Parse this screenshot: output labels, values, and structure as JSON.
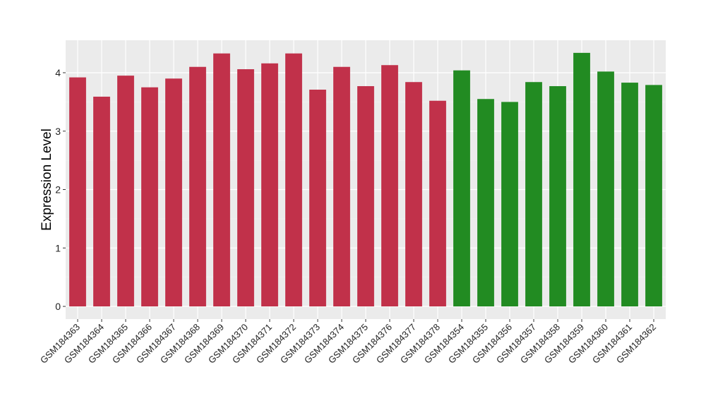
{
  "chart_data": {
    "type": "bar",
    "title": "",
    "xlabel": "",
    "ylabel": "Expression Level",
    "ylim": [
      0,
      4.4
    ],
    "yticks": [
      "0",
      "1",
      "2",
      "3",
      "4"
    ],
    "grid": true,
    "categories": [
      "GSM184363",
      "GSM184364",
      "GSM184365",
      "GSM184366",
      "GSM184367",
      "GSM184368",
      "GSM184369",
      "GSM184370",
      "GSM184371",
      "GSM184372",
      "GSM184373",
      "GSM184374",
      "GSM184375",
      "GSM184376",
      "GSM184377",
      "GSM184378",
      "GSM184354",
      "GSM184355",
      "GSM184356",
      "GSM184357",
      "GSM184358",
      "GSM184359",
      "GSM184360",
      "GSM184361",
      "GSM184362"
    ],
    "values": [
      3.92,
      3.59,
      3.95,
      3.75,
      3.9,
      4.1,
      4.33,
      4.06,
      4.16,
      4.33,
      3.71,
      4.1,
      3.77,
      4.13,
      3.84,
      3.52,
      4.04,
      3.55,
      3.5,
      3.84,
      3.77,
      4.34,
      4.02,
      3.83,
      3.79
    ],
    "groups": [
      "a",
      "a",
      "a",
      "a",
      "a",
      "a",
      "a",
      "a",
      "a",
      "a",
      "a",
      "a",
      "a",
      "a",
      "a",
      "a",
      "b",
      "b",
      "b",
      "b",
      "b",
      "b",
      "b",
      "b",
      "b"
    ],
    "colors": {
      "a": "#C1314A",
      "b": "#228B22"
    }
  }
}
